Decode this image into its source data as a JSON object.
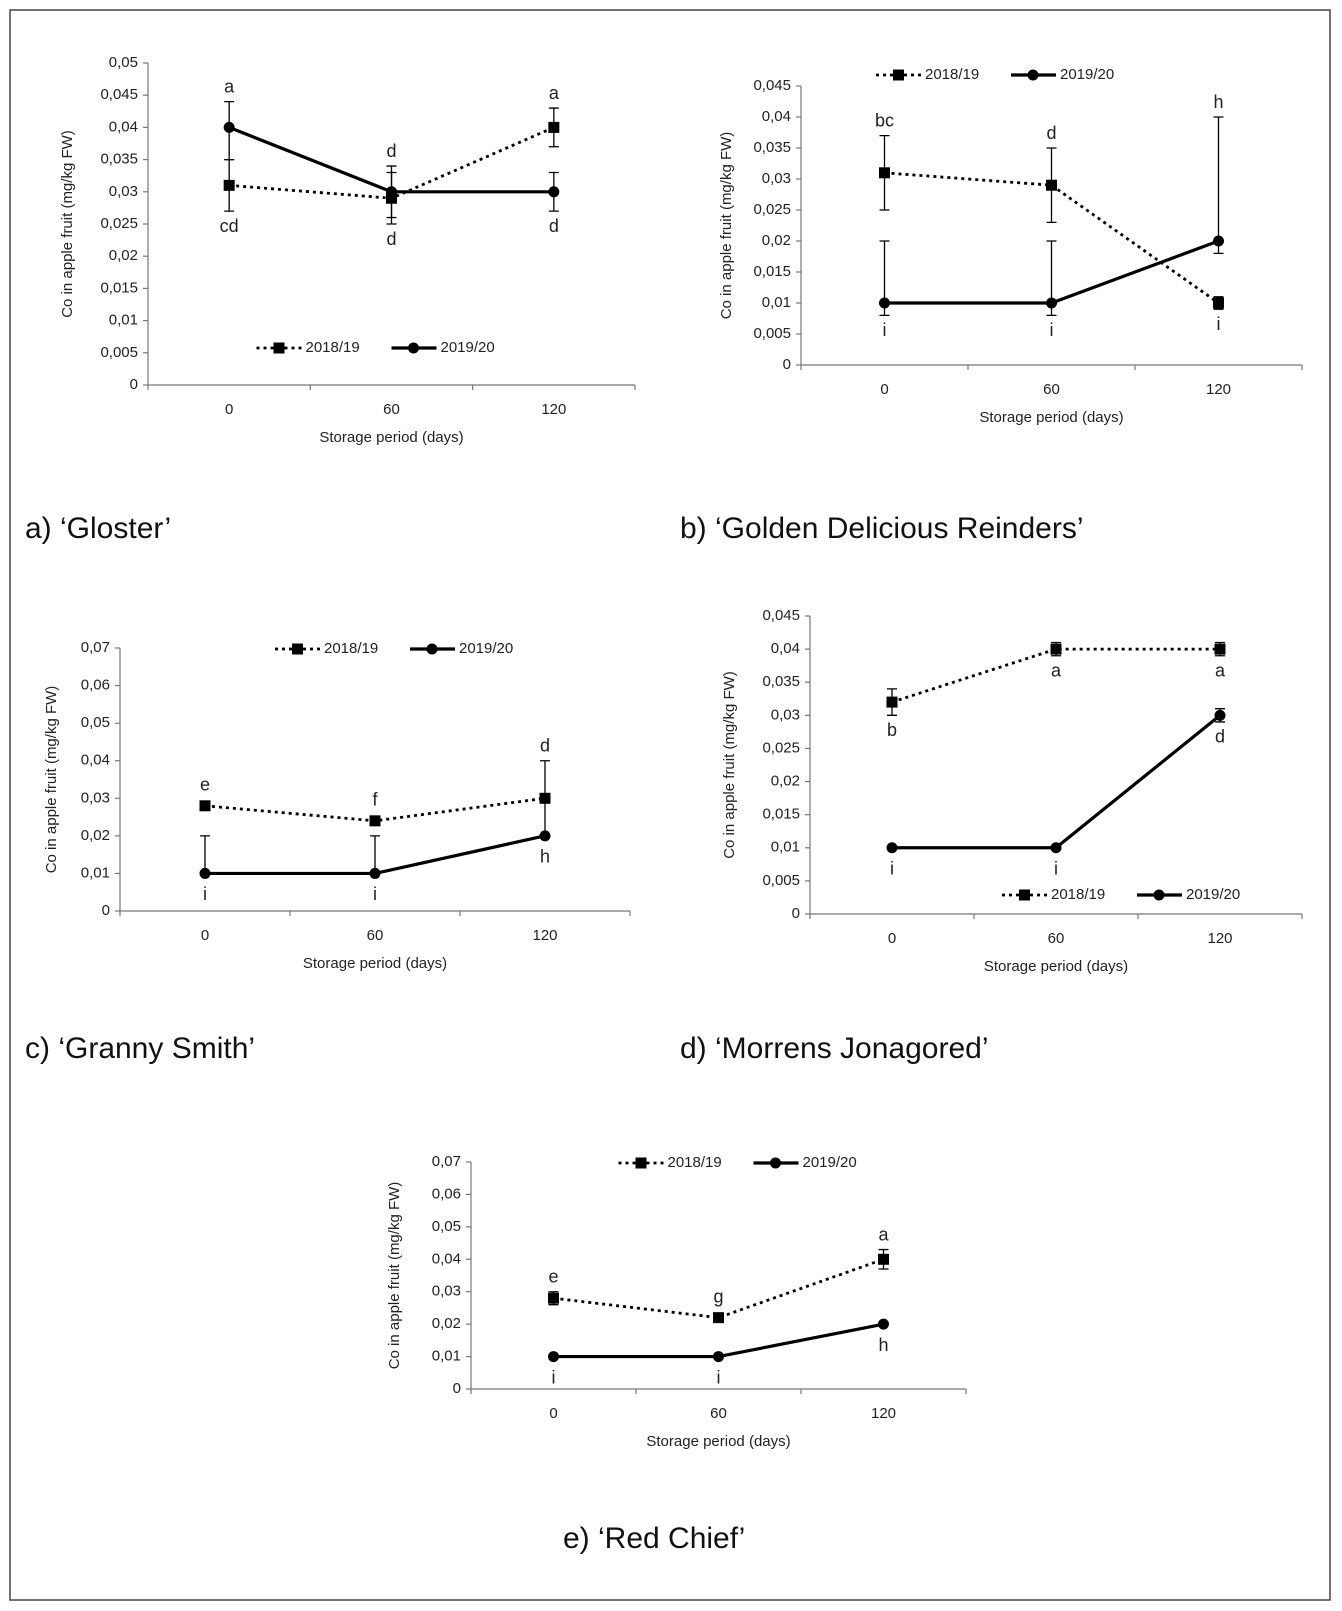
{
  "chart_data": [
    {
      "type": "line",
      "caption": "a) ‘Gloster’",
      "y_label": "Co in apple fruit (mg/kg FW)",
      "x_label": "Storage period (days)",
      "categories": [
        "0",
        "60",
        "120"
      ],
      "ylim": [
        0,
        0.05
      ],
      "yticks": [
        0,
        {
          "value": 0.005,
          "label": "0,005"
        },
        {
          "value": 0.01,
          "label": "0,01"
        },
        {
          "value": 0.015,
          "label": "0,015"
        },
        {
          "value": 0.02,
          "label": "0,02"
        },
        {
          "value": 0.025,
          "label": "0,025"
        },
        {
          "value": 0.03,
          "label": "0,03"
        },
        {
          "value": 0.035,
          "label": "0,035"
        },
        {
          "value": 0.04,
          "label": "0,04"
        },
        {
          "value": 0.045,
          "label": "0,045"
        },
        {
          "value": 0.05,
          "label": "0,05"
        }
      ],
      "legend": "lower center",
      "series": [
        {
          "name": "2018/19",
          "color": "#000000",
          "line_style": "dotted",
          "marker": "square",
          "values": [
            0.031,
            0.029,
            0.04
          ],
          "errors_up": [
            0.004,
            0.004,
            0.003
          ],
          "errors_down": [
            0.004,
            0.004,
            0.003
          ],
          "annotations": [
            "cd",
            "d",
            "a"
          ],
          "annotation_sides": [
            "below",
            "below",
            "above"
          ]
        },
        {
          "name": "2019/20",
          "color": "#000000",
          "line_style": "solid",
          "marker": "circle",
          "values": [
            0.04,
            0.03,
            0.03
          ],
          "errors_up": [
            0.004,
            0.004,
            0.003
          ],
          "errors_down": [
            0.005,
            0.004,
            0.003
          ],
          "annotations": [
            "a",
            "d",
            "d"
          ],
          "annotation_sides": [
            "above",
            "above",
            "below"
          ]
        }
      ]
    },
    {
      "type": "line",
      "caption": "b) ‘Golden Delicious Reinders’",
      "y_label": "Co in apple fruit (mg/kg FW)",
      "x_label": "Storage period (days)",
      "categories": [
        "0",
        "60",
        "120"
      ],
      "ylim": [
        0,
        0.045
      ],
      "yticks": [
        0,
        {
          "value": 0.005,
          "label": "0,005"
        },
        {
          "value": 0.01,
          "label": "0,01"
        },
        {
          "value": 0.015,
          "label": "0,015"
        },
        {
          "value": 0.02,
          "label": "0,02"
        },
        {
          "value": 0.025,
          "label": "0,025"
        },
        {
          "value": 0.03,
          "label": "0,03"
        },
        {
          "value": 0.035,
          "label": "0,035"
        },
        {
          "value": 0.04,
          "label": "0,04"
        },
        {
          "value": 0.045,
          "label": "0,045"
        }
      ],
      "legend": "above left",
      "series": [
        {
          "name": "2018/19",
          "color": "#000000",
          "line_style": "dotted",
          "marker": "square",
          "values": [
            0.031,
            0.029,
            0.01
          ],
          "errors_up": [
            0.006,
            0.006,
            0.001
          ],
          "errors_down": [
            0.006,
            0.006,
            0.001
          ],
          "annotations": [
            "bc",
            "d",
            "i"
          ],
          "annotation_sides": [
            "above",
            "above",
            "below"
          ]
        },
        {
          "name": "2019/20",
          "color": "#000000",
          "line_style": "solid",
          "marker": "circle",
          "values": [
            0.01,
            0.01,
            0.02
          ],
          "errors_up": [
            0.01,
            0.01,
            0.02
          ],
          "errors_down": [
            0.002,
            0.002,
            0.002
          ],
          "annotations": [
            "i",
            "i",
            "h"
          ],
          "annotation_sides": [
            "below",
            "below",
            "above"
          ]
        }
      ]
    },
    {
      "type": "line",
      "caption": "c) ‘Granny Smith’",
      "y_label": "Co in apple fruit (mg/kg FW)",
      "x_label": "Storage period (days)",
      "categories": [
        "0",
        "60",
        "120"
      ],
      "ylim": [
        0,
        0.07
      ],
      "yticks": [
        0,
        {
          "value": 0.01,
          "label": "0,01"
        },
        {
          "value": 0.02,
          "label": "0,02"
        },
        {
          "value": 0.03,
          "label": "0,03"
        },
        {
          "value": 0.04,
          "label": "0,04"
        },
        {
          "value": 0.05,
          "label": "0,05"
        },
        {
          "value": 0.06,
          "label": "0,06"
        },
        {
          "value": 0.07,
          "label": "0,07"
        }
      ],
      "legend": "upper center",
      "series": [
        {
          "name": "2018/19",
          "color": "#000000",
          "line_style": "dotted",
          "marker": "square",
          "values": [
            0.028,
            0.024,
            0.03
          ],
          "errors_up": [
            0,
            0,
            0.01
          ],
          "errors_down": [
            0,
            0,
            0.01
          ],
          "annotations": [
            "e",
            "f",
            "d"
          ],
          "annotation_sides": [
            "above",
            "above",
            "above"
          ]
        },
        {
          "name": "2019/20",
          "color": "#000000",
          "line_style": "solid",
          "marker": "circle",
          "values": [
            0.01,
            0.01,
            0.02
          ],
          "errors_up": [
            0.01,
            0.01,
            0
          ],
          "errors_down": [
            0,
            0,
            0
          ],
          "annotations": [
            "i",
            "i",
            "h"
          ],
          "annotation_sides": [
            "below",
            "below",
            "below"
          ]
        }
      ]
    },
    {
      "type": "line",
      "caption": "d) ‘Morrens Jonagored’",
      "y_label": "Co in apple fruit (mg/kg FW)",
      "x_label": "Storage period (days)",
      "categories": [
        "0",
        "60",
        "120"
      ],
      "ylim": [
        0,
        0.045
      ],
      "yticks": [
        0,
        {
          "value": 0.005,
          "label": "0,005"
        },
        {
          "value": 0.01,
          "label": "0,01"
        },
        {
          "value": 0.015,
          "label": "0,015"
        },
        {
          "value": 0.02,
          "label": "0,02"
        },
        {
          "value": 0.025,
          "label": "0,025"
        },
        {
          "value": 0.03,
          "label": "0,03"
        },
        {
          "value": 0.035,
          "label": "0,035"
        },
        {
          "value": 0.04,
          "label": "0,04"
        },
        {
          "value": 0.045,
          "label": "0,045"
        }
      ],
      "legend": "lower right",
      "series": [
        {
          "name": "2018/19",
          "color": "#000000",
          "line_style": "dotted",
          "marker": "square",
          "values": [
            0.032,
            0.04,
            0.04
          ],
          "errors_up": [
            0.002,
            0.001,
            0.001
          ],
          "errors_down": [
            0.002,
            0.001,
            0.001
          ],
          "annotations": [
            "b",
            "a",
            "a"
          ],
          "annotation_sides": [
            "below",
            "below",
            "below"
          ]
        },
        {
          "name": "2019/20",
          "color": "#000000",
          "line_style": "solid",
          "marker": "circle",
          "values": [
            0.01,
            0.01,
            0.03
          ],
          "errors_up": [
            0,
            0,
            0.001
          ],
          "errors_down": [
            0,
            0,
            0.001
          ],
          "annotations": [
            "i",
            "i",
            "d"
          ],
          "annotation_sides": [
            "below",
            "below",
            "below"
          ]
        }
      ]
    },
    {
      "type": "line",
      "caption": "e) ‘Red Chief’",
      "y_label": "Co in apple fruit (mg/kg FW)",
      "x_label": "Storage period (days)",
      "categories": [
        "0",
        "60",
        "120"
      ],
      "ylim": [
        0,
        0.07
      ],
      "yticks": [
        0,
        {
          "value": 0.01,
          "label": "0,01"
        },
        {
          "value": 0.02,
          "label": "0,02"
        },
        {
          "value": 0.03,
          "label": "0,03"
        },
        {
          "value": 0.04,
          "label": "0,04"
        },
        {
          "value": 0.05,
          "label": "0,05"
        },
        {
          "value": 0.06,
          "label": "0,06"
        },
        {
          "value": 0.07,
          "label": "0,07"
        }
      ],
      "legend": "upper center",
      "series": [
        {
          "name": "2018/19",
          "color": "#000000",
          "line_style": "dotted",
          "marker": "square",
          "values": [
            0.028,
            0.022,
            0.04
          ],
          "errors_up": [
            0.002,
            0.001,
            0.003
          ],
          "errors_down": [
            0.002,
            0.001,
            0.003
          ],
          "annotations": [
            "e",
            "g",
            "a"
          ],
          "annotation_sides": [
            "above",
            "above",
            "above"
          ]
        },
        {
          "name": "2019/20",
          "color": "#000000",
          "line_style": "solid",
          "marker": "circle",
          "values": [
            0.01,
            0.01,
            0.02
          ],
          "errors_up": [
            0,
            0,
            0
          ],
          "errors_down": [
            0,
            0,
            0
          ],
          "annotations": [
            "i",
            "i",
            "h"
          ],
          "annotation_sides": [
            "below",
            "below",
            "below"
          ]
        }
      ]
    }
  ]
}
